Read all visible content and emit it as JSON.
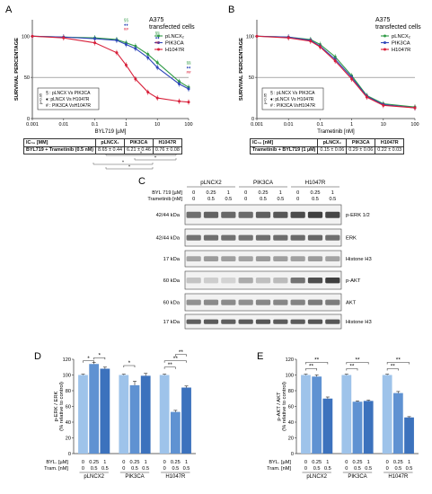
{
  "panel_labels": {
    "A": "A",
    "B": "B",
    "C": "C",
    "D": "D",
    "E": "E"
  },
  "dose_panels": {
    "A": {
      "cell_line": [
        "A375",
        "transfected cells"
      ],
      "ylabel": "SURVIVAL PERCENTAGE",
      "xlabel": "BYL719 [µM]",
      "yticks": [
        "0",
        "50",
        "100"
      ],
      "xticks": [
        "0.001",
        "0.01",
        "0.1",
        "1",
        "10",
        "100"
      ],
      "legend": [
        "pLNCX₂",
        "PIK3CA",
        "H1047R"
      ],
      "sig_legend": [
        "§ : pLNCX Vs PIK3CA",
        "♦: pLNCX Vs H1047R",
        "# : PIK3CA VsH1047R"
      ],
      "side_label": "p<0.05",
      "sig_marks_1": [
        "§§",
        "♦♦",
        "##"
      ],
      "sig_marks_2": [
        "§§",
        "♦♦",
        "##"
      ],
      "sig_marks_3": [
        "§§",
        "♦♦",
        "##"
      ],
      "bracket_stars": [
        "*",
        "*",
        "*",
        "*"
      ],
      "table": {
        "header": [
          "IC₅₀ [MM]",
          "pLNCX₂",
          "PIK3CA",
          "H1047R"
        ],
        "row": [
          "BYL719 + Trametinib (0.5 nM)",
          "8.65 ± 0.44",
          "6.21 ± 0.46",
          "0.76 ± 0.08"
        ]
      }
    },
    "B": {
      "cell_line": [
        "A375",
        "transfected cells"
      ],
      "ylabel": "SURVIVAL PERCENTAGE",
      "xlabel": "Trametinib [nM]",
      "yticks": [
        "0",
        "50",
        "100"
      ],
      "xticks": [
        "0.001",
        "0.01",
        "0.1",
        "1",
        "10",
        "100"
      ],
      "legend": [
        "pLNCX₂",
        "PIK3CA",
        "H1047R"
      ],
      "sig_legend": [
        "§ : pLNCX Vs PIK3CA",
        "♦: pLNCX Vs H1047R",
        "# : PIK3CA VsH1047R"
      ],
      "side_label": "p<0.05",
      "table": {
        "header": [
          "IC₅₀ [nM]",
          "pLNCX₂",
          "PIK3CA",
          "H1047R"
        ],
        "row": [
          "Trametinib + BYL719 (1 µM)",
          "0.15 ± 0.06",
          "0.29 ± 0.06",
          "0.22 ± 0.03"
        ]
      }
    }
  },
  "western": {
    "groups": [
      "pLNCX2",
      "PIK3CA",
      "H1047R"
    ],
    "row1_label": "BYL 719 [µM]",
    "row2_label": "Trametinib [nM]",
    "row1_values": [
      "0",
      "0.25",
      "1",
      "0",
      "0.25",
      "1",
      "0",
      "0.25",
      "1"
    ],
    "row2_values": [
      "0",
      "0.5",
      "0.5",
      "0",
      "0.5",
      "0.5",
      "0",
      "0.5",
      "0.5"
    ],
    "blots": [
      {
        "kda": "42/44 kDa",
        "protein": "p-ERK 1/2"
      },
      {
        "kda": "42/44 kDa",
        "protein": "ERK"
      },
      {
        "kda": "17 kDa",
        "protein": "Histone H3"
      },
      {
        "kda": "60 kDa",
        "protein": "p-AKT"
      },
      {
        "kda": "60 kDa",
        "protein": "AKT"
      },
      {
        "kda": "17 kDa",
        "protein": "Histone H3"
      }
    ]
  },
  "bar_panels": {
    "D": {
      "ylabel": [
        "p-ERK / ERK",
        "(% relative to control)"
      ],
      "yticks": [
        "0",
        "20",
        "40",
        "60",
        "80",
        "100",
        "120"
      ],
      "bottom_labels": [
        "BYL. [µM]",
        "Tram. [nM]"
      ],
      "byl_values": [
        "0",
        "0.25",
        "1",
        "0",
        "0.25",
        "1",
        "0",
        "0.25",
        "1"
      ],
      "tram_values": [
        "0",
        "0.5",
        "0.5",
        "0",
        "0.5",
        "0.5",
        "0",
        "0.5",
        "0.5"
      ],
      "groups": [
        "pLNCX2",
        "PIK3CA",
        "H1047R"
      ],
      "stars": [
        "*",
        "*",
        "*",
        "**",
        "**",
        "**"
      ]
    },
    "E": {
      "ylabel": [
        "p-AKT / AKT",
        "(% relative to control)"
      ],
      "yticks": [
        "0",
        "20",
        "40",
        "60",
        "80",
        "100",
        "120"
      ],
      "bottom_labels": [
        "BYL. [µM]",
        "Tram. [nM]"
      ],
      "byl_values": [
        "0",
        "0.25",
        "1",
        "0",
        "0.25",
        "1",
        "0",
        "0.25",
        "1"
      ],
      "tram_values": [
        "0",
        "0.5",
        "0.5",
        "0",
        "0.5",
        "0.5",
        "0",
        "0.5",
        "0.5"
      ],
      "groups": [
        "pLNCX2",
        "PIK3CA",
        "H1047R"
      ],
      "stars": [
        "**",
        "**",
        "**",
        "**",
        "**",
        "**"
      ]
    }
  },
  "colors": {
    "green": "#2f9a45",
    "blue": "#2d46b9",
    "red": "#d8203a",
    "bar_light": "#9ec3ea",
    "bar_mid": "#5f92d2",
    "bar_dark": "#3c72bd"
  },
  "chart_data": [
    {
      "type": "line",
      "panel": "A",
      "title": "",
      "xlabel": "BYL719 [µM]",
      "ylabel": "SURVIVAL PERCENTAGE",
      "xscale": "log",
      "xlim": [
        0.001,
        100
      ],
      "ylim": [
        0,
        120
      ],
      "legend_position": "top-right",
      "x": [
        0.001,
        0.01,
        0.1,
        0.5,
        1,
        2,
        5,
        10,
        50,
        100
      ],
      "series": [
        {
          "name": "pLNCX₂",
          "color": "#2f9a45",
          "values": [
            100,
            99,
            98,
            96,
            92,
            88,
            78,
            68,
            45,
            38
          ]
        },
        {
          "name": "PIK3CA",
          "color": "#2d46b9",
          "values": [
            100,
            99,
            97,
            95,
            90,
            85,
            74,
            62,
            42,
            36
          ]
        },
        {
          "name": "H1047R",
          "color": "#d8203a",
          "values": [
            100,
            98,
            92,
            80,
            65,
            48,
            32,
            25,
            21,
            20
          ]
        }
      ],
      "reference_line_y": 50
    },
    {
      "type": "line",
      "panel": "B",
      "title": "",
      "xlabel": "Trametinib [nM]",
      "ylabel": "SURVIVAL PERCENTAGE",
      "xscale": "log",
      "xlim": [
        0.001,
        100
      ],
      "ylim": [
        0,
        120
      ],
      "legend_position": "top-right",
      "x": [
        0.001,
        0.01,
        0.05,
        0.1,
        0.3,
        1,
        3,
        10,
        100
      ],
      "series": [
        {
          "name": "pLNCX₂",
          "color": "#2f9a45",
          "values": [
            100,
            99,
            96,
            90,
            75,
            52,
            28,
            18,
            14
          ]
        },
        {
          "name": "PIK3CA",
          "color": "#2d46b9",
          "values": [
            100,
            99,
            95,
            88,
            72,
            50,
            27,
            17,
            13
          ]
        },
        {
          "name": "H1047R",
          "color": "#d8203a",
          "values": [
            100,
            98,
            94,
            87,
            70,
            48,
            26,
            16,
            13
          ]
        }
      ],
      "reference_line_y": 50
    },
    {
      "type": "bar",
      "panel": "D",
      "title": "",
      "xlabel": "",
      "ylabel": "p-ERK / ERK (% relative to control)",
      "ylim": [
        0,
        120
      ],
      "categories": [
        "pLNCX2 0/0",
        "pLNCX2 0.25/0.5",
        "pLNCX2 1/0.5",
        "PIK3CA 0/0",
        "PIK3CA 0.25/0.5",
        "PIK3CA 1/0.5",
        "H1047R 0/0",
        "H1047R 0.25/0.5",
        "H1047R 1/0.5"
      ],
      "values": [
        100,
        114,
        108,
        100,
        87,
        99,
        100,
        53,
        84
      ],
      "errors": [
        1,
        2,
        2,
        1,
        5,
        3,
        1,
        2,
        2
      ]
    },
    {
      "type": "bar",
      "panel": "E",
      "title": "",
      "xlabel": "",
      "ylabel": "p-AKT / AKT (% relative to control)",
      "ylim": [
        0,
        120
      ],
      "categories": [
        "pLNCX2 0/0",
        "pLNCX2 0.25/0.5",
        "pLNCX2 1/0.5",
        "PIK3CA 0/0",
        "PIK3CA 0.25/0.5",
        "PIK3CA 1/0.5",
        "H1047R 0/0",
        "H1047R 0.25/0.5",
        "H1047R 1/0.5"
      ],
      "values": [
        100,
        98,
        70,
        100,
        66,
        67,
        100,
        77,
        46
      ],
      "errors": [
        1,
        2,
        2,
        1,
        1,
        1,
        1,
        2,
        1
      ]
    }
  ]
}
